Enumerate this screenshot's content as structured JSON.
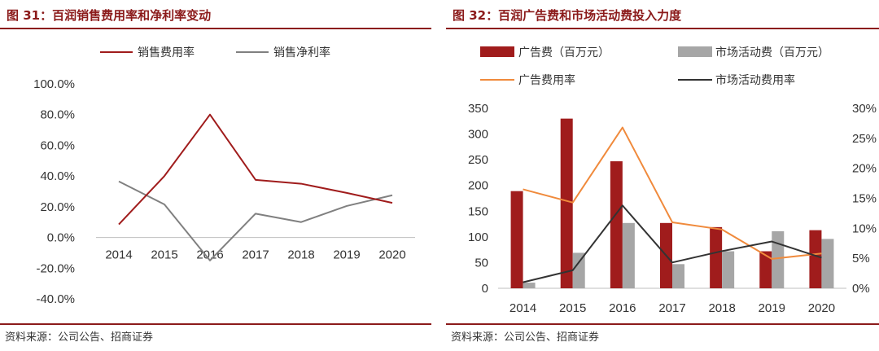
{
  "left_panel": {
    "title": "图 31：百润销售费用率和净利率变动",
    "source": "资料来源：公司公告、招商证券"
  },
  "right_panel": {
    "title": "图 32：百润广告费和市场活动费投入力度",
    "source": "资料来源：公司公告、招商证券"
  },
  "colors": {
    "title": "#8B1A1A",
    "dark_red": "#A01C1C",
    "gray": "#808080",
    "light_gray": "#A6A6A6",
    "orange": "#F08A3C",
    "dark": "#333333"
  },
  "chart_data": [
    {
      "type": "line",
      "categories": [
        "2014",
        "2015",
        "2016",
        "2017",
        "2018",
        "2019",
        "2020"
      ],
      "series": [
        {
          "name": "销售费用率",
          "values": [
            8.5,
            40.0,
            80.0,
            37.5,
            35.0,
            29.0,
            22.5
          ]
        },
        {
          "name": "销售净利率",
          "values": [
            36.5,
            21.5,
            -15.0,
            15.5,
            10.0,
            20.5,
            27.5
          ]
        }
      ],
      "y_ticks": [
        "100.0%",
        "80.0%",
        "60.0%",
        "40.0%",
        "20.0%",
        "0.0%",
        "-20.0%",
        "-40.0%"
      ],
      "ylim": [
        -40,
        100
      ],
      "legend_position": "top"
    },
    {
      "type": "bar",
      "categories": [
        "2014",
        "2015",
        "2016",
        "2017",
        "2018",
        "2019",
        "2020"
      ],
      "series": [
        {
          "name": "广告费（百万元）",
          "values": [
            189,
            330,
            247,
            127,
            119,
            72,
            113
          ],
          "axis": "left",
          "kind": "bar"
        },
        {
          "name": "市场活动费（百万元）",
          "values": [
            11,
            69,
            127,
            47,
            72,
            111,
            96
          ],
          "axis": "left",
          "kind": "bar"
        },
        {
          "name": "广告费用率",
          "values": [
            16.5,
            14.3,
            26.8,
            11.0,
            9.8,
            4.9,
            5.8
          ],
          "axis": "right",
          "kind": "line"
        },
        {
          "name": "市场活动费用率",
          "values": [
            1.0,
            3.0,
            13.8,
            4.3,
            6.2,
            7.8,
            5.1
          ],
          "axis": "right",
          "kind": "line"
        }
      ],
      "y_left_ticks": [
        "350",
        "300",
        "250",
        "200",
        "150",
        "100",
        "50",
        "0"
      ],
      "y_right_ticks": [
        "30%",
        "25%",
        "20%",
        "15%",
        "10%",
        "5%",
        "0%"
      ],
      "ylim_left": [
        0,
        350
      ],
      "ylim_right": [
        0,
        30
      ],
      "legend_position": "top"
    }
  ]
}
